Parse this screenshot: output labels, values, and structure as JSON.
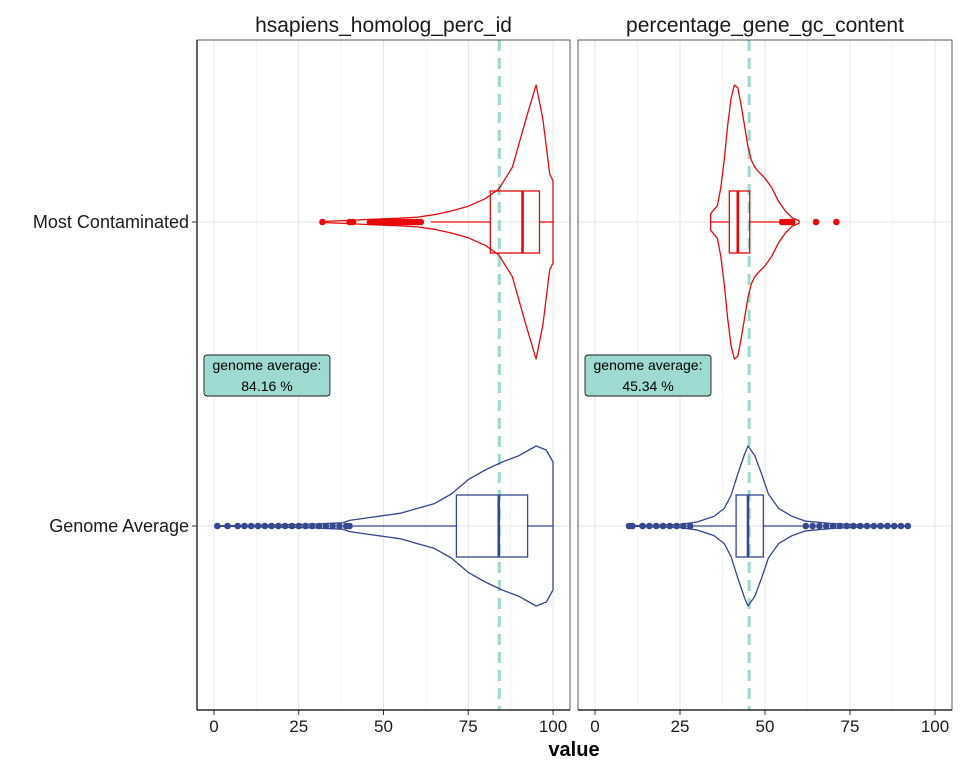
{
  "chart_data": {
    "type": "violin",
    "xlabel": "value",
    "ylabel": "",
    "xlim": [
      -5,
      105
    ],
    "x_ticks": [
      0,
      25,
      50,
      75,
      100
    ],
    "x_tick_labels": [
      "0",
      "25",
      "50",
      "75",
      "100"
    ],
    "categories": [
      "Most Contaminated",
      "Genome Average"
    ],
    "grid": true,
    "colors": {
      "Most Contaminated": "#e8080a",
      "Genome Average": "#34478f",
      "reference_line": "#9ed9d0",
      "label_fill": "#9ed9d2"
    },
    "facets": [
      {
        "title": "hsapiens_homolog_perc_id",
        "reference": {
          "value": 84.16,
          "label_line1": "genome average:",
          "label_line2": "84.16 %"
        },
        "groups": [
          {
            "name": "Most Contaminated",
            "box": {
              "min": 64,
              "q1": 81.5,
              "median": 91,
              "q3": 96,
              "max": 100
            },
            "outliers": [
              32,
              40,
              41,
              46,
              47,
              48,
              49,
              50,
              51,
              52,
              53,
              54,
              55,
              56,
              57,
              58,
              59,
              60,
              61
            ],
            "violin": [
              [
                32,
                0.4
              ],
              [
                40,
                1.2
              ],
              [
                45,
                1.8
              ],
              [
                50,
                2.3
              ],
              [
                55,
                2.8
              ],
              [
                60,
                3.6
              ],
              [
                65,
                5.3
              ],
              [
                70,
                8
              ],
              [
                75,
                11.5
              ],
              [
                80,
                17
              ],
              [
                84,
                24
              ],
              [
                88,
                40
              ],
              [
                92,
                75
              ],
              [
                95,
                100
              ],
              [
                97,
                75
              ],
              [
                99,
                35
              ],
              [
                100,
                30
              ]
            ]
          },
          {
            "name": "Genome Average",
            "box": {
              "min": 41,
              "q1": 71.5,
              "median": 84,
              "q3": 92.5,
              "max": 100
            },
            "outliers": [
              1,
              4,
              7,
              9,
              11,
              13,
              15,
              17,
              19,
              21,
              23,
              25,
              27,
              29,
              31,
              33,
              35,
              37,
              39,
              40
            ],
            "violin": [
              [
                1,
                0.2
              ],
              [
                20,
                1.5
              ],
              [
                30,
                2.5
              ],
              [
                38,
                4
              ],
              [
                40,
                7
              ],
              [
                45,
                10
              ],
              [
                50,
                13
              ],
              [
                55,
                16
              ],
              [
                60,
                22
              ],
              [
                65,
                28
              ],
              [
                70,
                40
              ],
              [
                75,
                58
              ],
              [
                80,
                70
              ],
              [
                85,
                80
              ],
              [
                90,
                88
              ],
              [
                95,
                100
              ],
              [
                98,
                95
              ],
              [
                100,
                80
              ]
            ]
          }
        ]
      },
      {
        "title": "percentage_gene_gc_content",
        "reference": {
          "value": 45.34,
          "label_line1": "genome average:",
          "label_line2": "45.34 %"
        },
        "groups": [
          {
            "name": "Most Contaminated",
            "box": {
              "min": 34,
              "q1": 39.5,
              "median": 42,
              "q3": 45.5,
              "max": 54
            },
            "outliers": [
              55,
              56,
              57,
              58,
              65,
              71
            ],
            "violin": [
              [
                34,
                6
              ],
              [
                36,
                12
              ],
              [
                37,
                25
              ],
              [
                38,
                45
              ],
              [
                39,
                70
              ],
              [
                40,
                90
              ],
              [
                41,
                100
              ],
              [
                42,
                98
              ],
              [
                43,
                85
              ],
              [
                44,
                70
              ],
              [
                45,
                55
              ],
              [
                46,
                45
              ],
              [
                47,
                40
              ],
              [
                48,
                37
              ],
              [
                50,
                32
              ],
              [
                52,
                25
              ],
              [
                54,
                15
              ],
              [
                56,
                8
              ],
              [
                58,
                3
              ],
              [
                60,
                1
              ]
            ]
          },
          {
            "name": "Genome Average",
            "box": {
              "min": 29,
              "q1": 41.5,
              "median": 45,
              "q3": 49.5,
              "max": 62
            },
            "outliers": [
              10,
              11,
              14,
              16,
              18,
              20,
              22,
              24,
              26,
              28,
              62,
              64,
              66,
              68,
              70,
              72,
              74,
              76,
              78,
              80,
              82,
              84,
              86,
              88,
              90,
              92
            ],
            "violin": [
              [
                10,
                0.3
              ],
              [
                25,
                2
              ],
              [
                30,
                5
              ],
              [
                35,
                12
              ],
              [
                38,
                22
              ],
              [
                40,
                38
              ],
              [
                42,
                65
              ],
              [
                44,
                90
              ],
              [
                45,
                100
              ],
              [
                47,
                88
              ],
              [
                49,
                65
              ],
              [
                51,
                40
              ],
              [
                54,
                22
              ],
              [
                58,
                12
              ],
              [
                62,
                6
              ],
              [
                70,
                3
              ],
              [
                80,
                1
              ],
              [
                92,
                0.3
              ]
            ]
          }
        ]
      }
    ]
  }
}
